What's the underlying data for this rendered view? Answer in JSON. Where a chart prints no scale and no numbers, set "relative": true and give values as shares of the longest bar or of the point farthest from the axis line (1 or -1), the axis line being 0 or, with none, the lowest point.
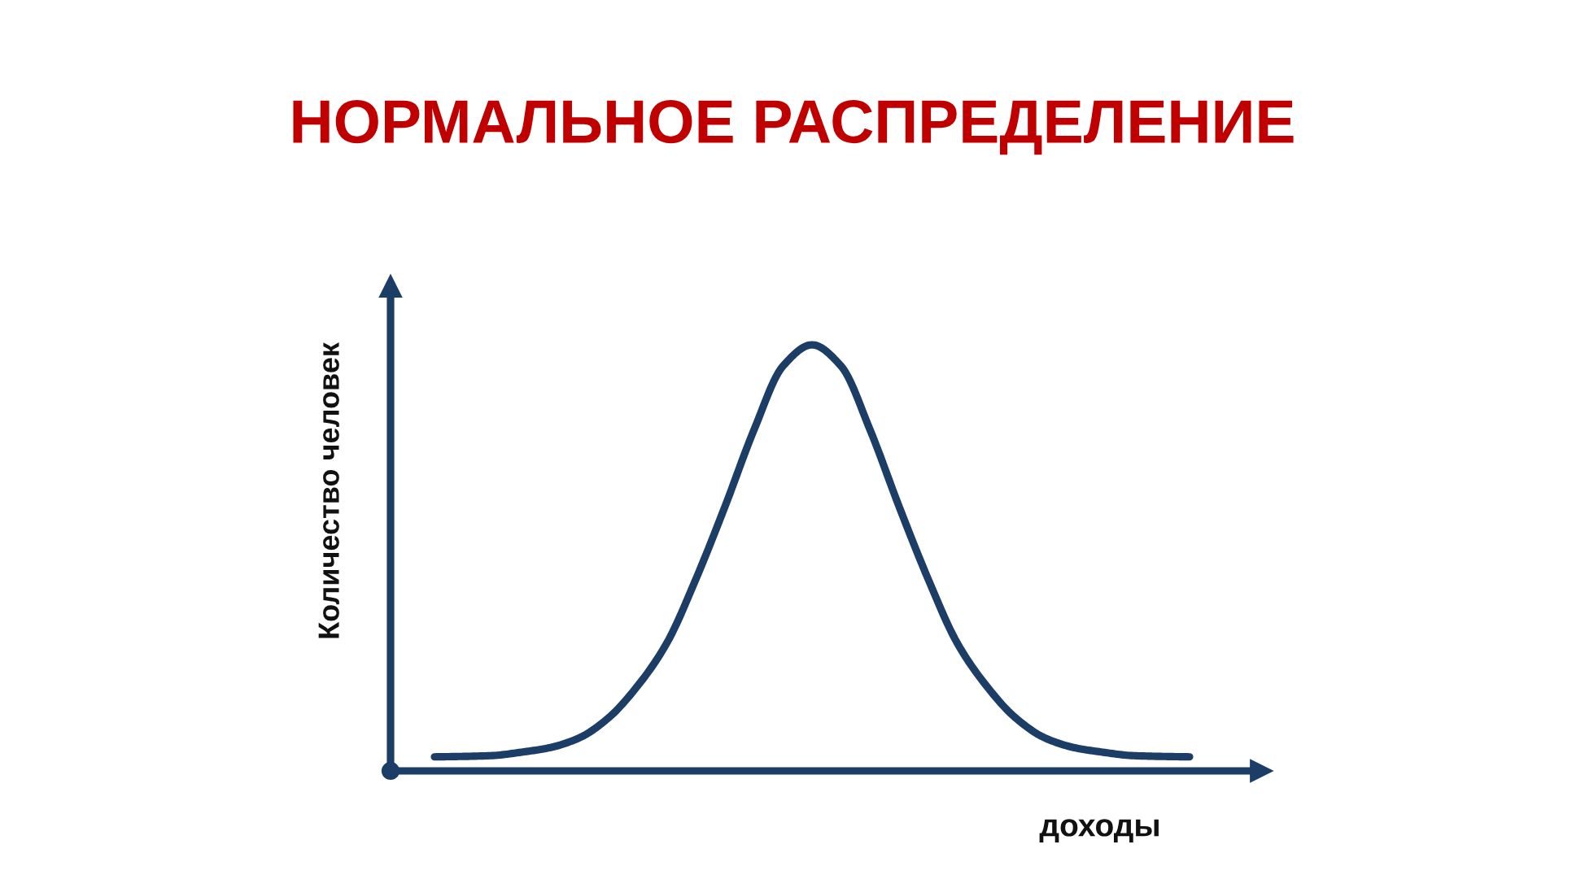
{
  "chart_data": {
    "type": "line",
    "title": "НОРМАЛЬНОЕ РАСПРЕДЕЛЕНИЕ",
    "xlabel": "доходы",
    "ylabel": "Количество человек",
    "relative": true,
    "line_style": "solid",
    "marker": "none",
    "categories": [
      null,
      null,
      null,
      null,
      null,
      null,
      null,
      null,
      null,
      null,
      null,
      null,
      null,
      null,
      null,
      null,
      null,
      null,
      null,
      null,
      null,
      null,
      null,
      null,
      null,
      null,
      null
    ],
    "series": [
      {
        "color": "#1b3d66",
        "values": [
          0.033,
          0.034,
          0.036,
          0.044,
          0.055,
          0.078,
          0.125,
          0.2,
          0.3,
          0.45,
          0.62,
          0.8,
          0.95,
          1,
          0.95,
          0.8,
          0.62,
          0.45,
          0.3,
          0.2,
          0.125,
          0.078,
          0.055,
          0.044,
          0.036,
          0.034,
          0.033
        ]
      }
    ]
  }
}
